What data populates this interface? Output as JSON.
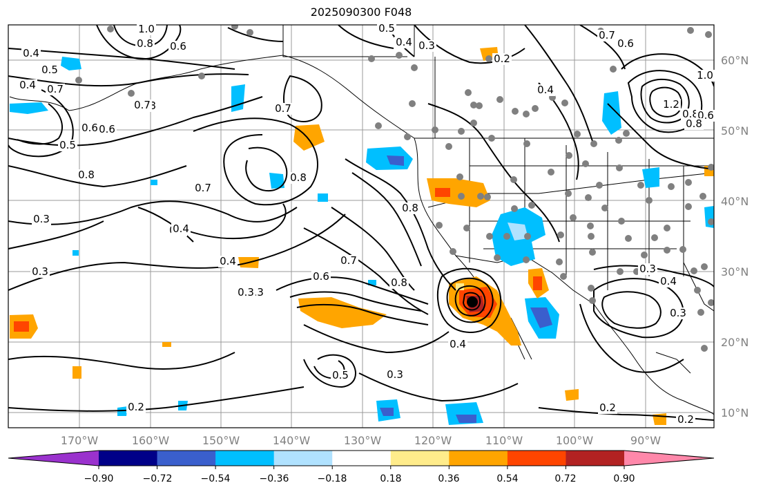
{
  "title": "2025090300 F048",
  "map": {
    "lat_labels": [
      "60°N",
      "50°N",
      "40°N",
      "30°N",
      "20°N",
      "10°N"
    ],
    "lon_labels": [
      "170°W",
      "160°W",
      "150°W",
      "140°W",
      "130°W",
      "120°W",
      "110°W",
      "100°W",
      "90°W"
    ],
    "label_color": "#808080",
    "contour_labels": [
      "0.4",
      "0.5",
      "0.6",
      "0.7",
      "0.8",
      "0.8",
      "0.6",
      "0.7",
      "0.4",
      "0.5",
      "0.7",
      "0.8",
      "0.7",
      "0.4",
      "0.3",
      "0.3",
      "0.4",
      "0.6",
      "0.7",
      "0.8",
      "0.8",
      "0.4",
      "0.3",
      "0.3",
      "0.2",
      "0.5",
      "0.4",
      "0.3",
      "0.7",
      "0.6",
      "1.0",
      "0.8",
      "0.6",
      "0.2",
      "1.0",
      "0.5",
      "0.3",
      "0.4",
      "0.4",
      "0.3",
      "0.2",
      "0.2",
      "0.4",
      "0.3",
      "0.8",
      "1.2",
      "0.6",
      "0.8"
    ]
  },
  "colorbar": {
    "ticks": [
      "−0.90",
      "−0.72",
      "−0.54",
      "−0.36",
      "−0.18",
      "0.18",
      "0.36",
      "0.54",
      "0.72",
      "0.90"
    ],
    "colors": [
      "#9a32cd",
      "#000088",
      "#3a5fcd",
      "#00bfff",
      "#b0e2ff",
      "#ffffff",
      "#ffec8b",
      "#ffa500",
      "#ff4500",
      "#b22222",
      "#ff88aa"
    ]
  }
}
